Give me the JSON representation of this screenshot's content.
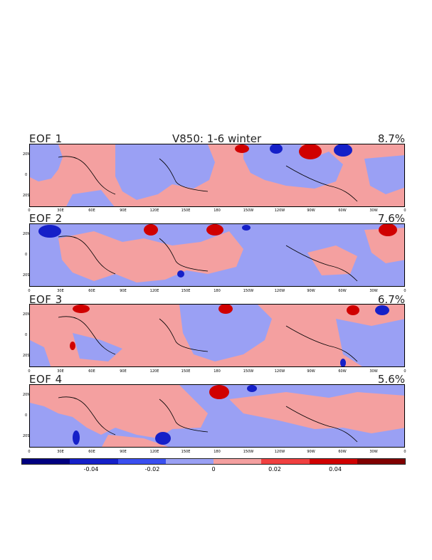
{
  "chart_data": {
    "type": "heatmap",
    "title": "V850: 1-6 winter",
    "colorscale": {
      "colors": [
        "#000080",
        "#1520c8",
        "#3a4ff0",
        "#9aa0f4",
        "#f4a0a0",
        "#f04040",
        "#d00000",
        "#800000"
      ],
      "tick_labels": [
        "-0.04",
        "-0.02",
        "0",
        "0.02",
        "0.04"
      ],
      "tick_values": [
        -0.04,
        -0.02,
        0,
        0.02,
        0.04
      ],
      "range": [
        -0.06,
        0.06
      ]
    },
    "x_tick_labels": [
      "0",
      "30E",
      "60E",
      "90E",
      "120E",
      "150E",
      "180",
      "150W",
      "120W",
      "90W",
      "60W",
      "30W",
      "0"
    ],
    "y_tick_labels": [
      "20N",
      "0",
      "20S"
    ],
    "panels": [
      {
        "label": "EOF 1",
        "explained_variance": "8.7%"
      },
      {
        "label": "EOF 2",
        "explained_variance": "7.6%"
      },
      {
        "label": "EOF 3",
        "explained_variance": "6.7%"
      },
      {
        "label": "EOF 4",
        "explained_variance": "5.6%"
      }
    ]
  }
}
